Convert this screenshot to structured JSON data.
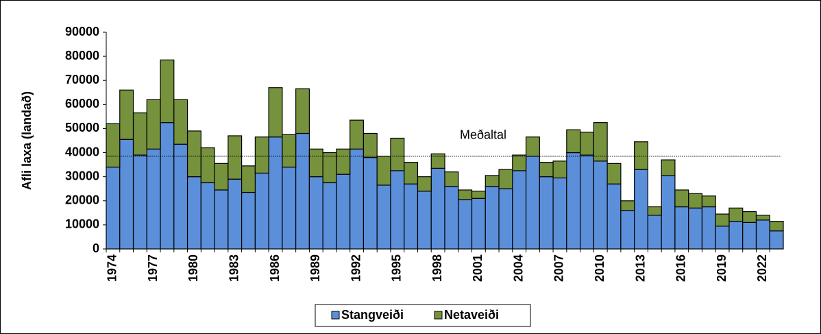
{
  "chart_data": {
    "type": "stacked_bar",
    "y_label": "Afli laxa (landað)",
    "categories": [
      "1974",
      null,
      null,
      "1977",
      null,
      null,
      "1980",
      null,
      null,
      "1983",
      null,
      null,
      "1986",
      null,
      null,
      "1989",
      null,
      null,
      "1992",
      null,
      null,
      "1995",
      null,
      null,
      "1998",
      null,
      null,
      "2001",
      null,
      null,
      "2004",
      null,
      null,
      "2007",
      null,
      null,
      "2010",
      null,
      null,
      "2013",
      null,
      null,
      "2016",
      null,
      null,
      "2019",
      null,
      null,
      "2022",
      null
    ],
    "series": [
      {
        "name": "Stangveiði",
        "color": "#5b8fd9",
        "values": [
          34000,
          45500,
          39000,
          41500,
          52500,
          43500,
          30000,
          27500,
          24500,
          29000,
          23500,
          31500,
          46500,
          34000,
          48000,
          30000,
          27500,
          31000,
          41500,
          38000,
          26500,
          32500,
          27000,
          24000,
          33500,
          26000,
          20500,
          21000,
          26000,
          25000,
          32500,
          38500,
          30000,
          29500,
          40000,
          39000,
          36500,
          27000,
          16000,
          33000,
          14000,
          30500,
          17500,
          17000,
          17500,
          9500,
          11500,
          11000,
          12000,
          7500
        ]
      },
      {
        "name": "Netaveiði",
        "color": "#76923c",
        "values": [
          18000,
          20500,
          17500,
          20500,
          26000,
          18500,
          19000,
          14500,
          11000,
          18000,
          11000,
          15000,
          20500,
          13500,
          18500,
          11500,
          12500,
          10500,
          12000,
          10000,
          12000,
          13500,
          9000,
          6000,
          6000,
          6000,
          4000,
          3000,
          4500,
          8000,
          6500,
          8000,
          6000,
          7000,
          9500,
          9500,
          16000,
          8500,
          4000,
          11500,
          3500,
          6500,
          7000,
          6000,
          4500,
          5000,
          5500,
          4500,
          2000,
          4000
        ]
      }
    ],
    "average": {
      "label": "Meðaltal",
      "value": 38500
    },
    "ylim": [
      0,
      90000
    ],
    "yticks": [
      0,
      10000,
      20000,
      30000,
      40000,
      50000,
      60000,
      70000,
      80000,
      90000
    ]
  }
}
